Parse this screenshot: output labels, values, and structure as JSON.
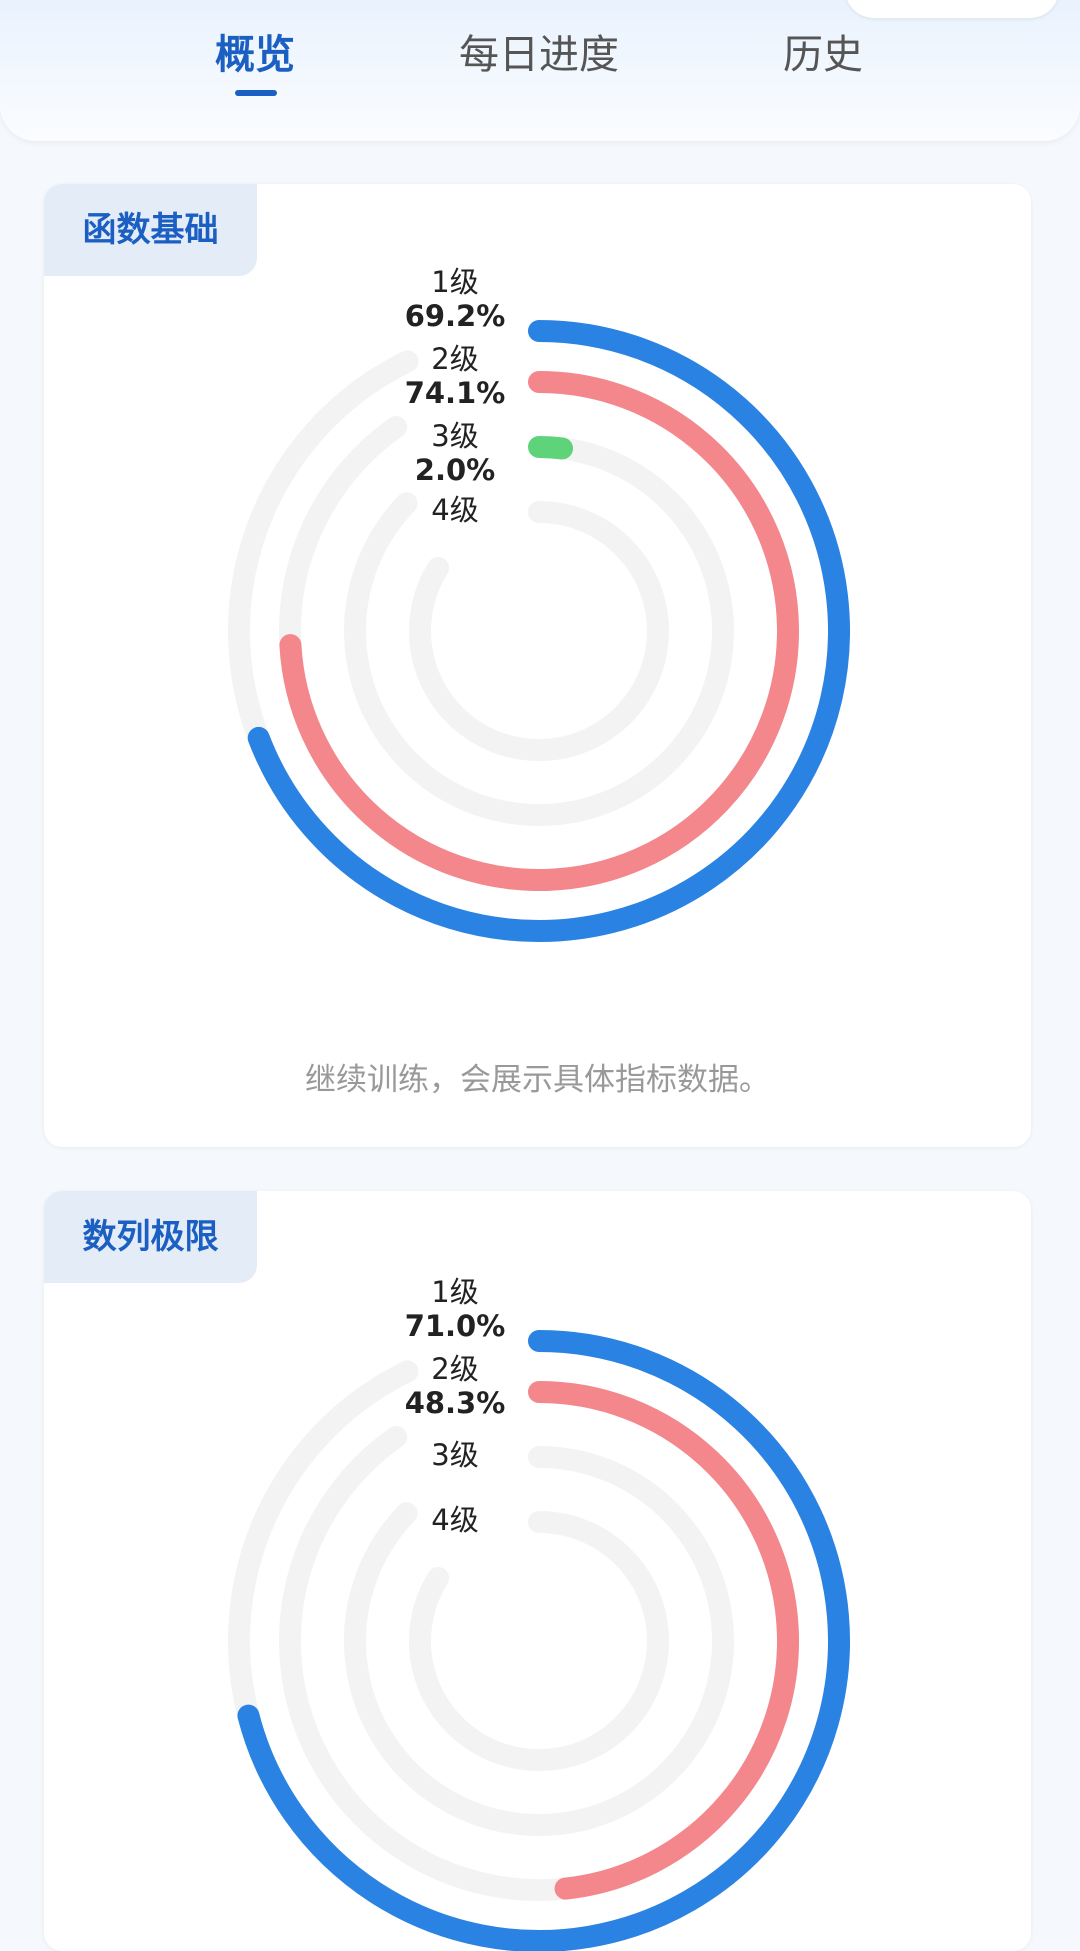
{
  "tabs": [
    "概览",
    "每日进度",
    "历史"
  ],
  "chart_data": [
    {
      "type": "radial-bar",
      "title": "函数基础",
      "categories": [
        "1级",
        "2级",
        "3级",
        "4级"
      ],
      "values": [
        69.2,
        74.1,
        2.0,
        null
      ],
      "value_labels": [
        "69.2%",
        "74.1%",
        "2.0%",
        null
      ],
      "colors": [
        "#2a83e3",
        "#f3878c",
        "#5fd37a"
      ],
      "note": "继续训练，会展示具体指标数据。"
    },
    {
      "type": "radial-bar",
      "title": "数列极限",
      "categories": [
        "1级",
        "2级",
        "3级",
        "4级"
      ],
      "values": [
        71.0,
        48.3,
        null,
        null
      ],
      "value_labels": [
        "71.0%",
        "48.3%",
        null,
        null
      ],
      "colors": [
        "#2a83e3",
        "#f3878c"
      ]
    }
  ]
}
